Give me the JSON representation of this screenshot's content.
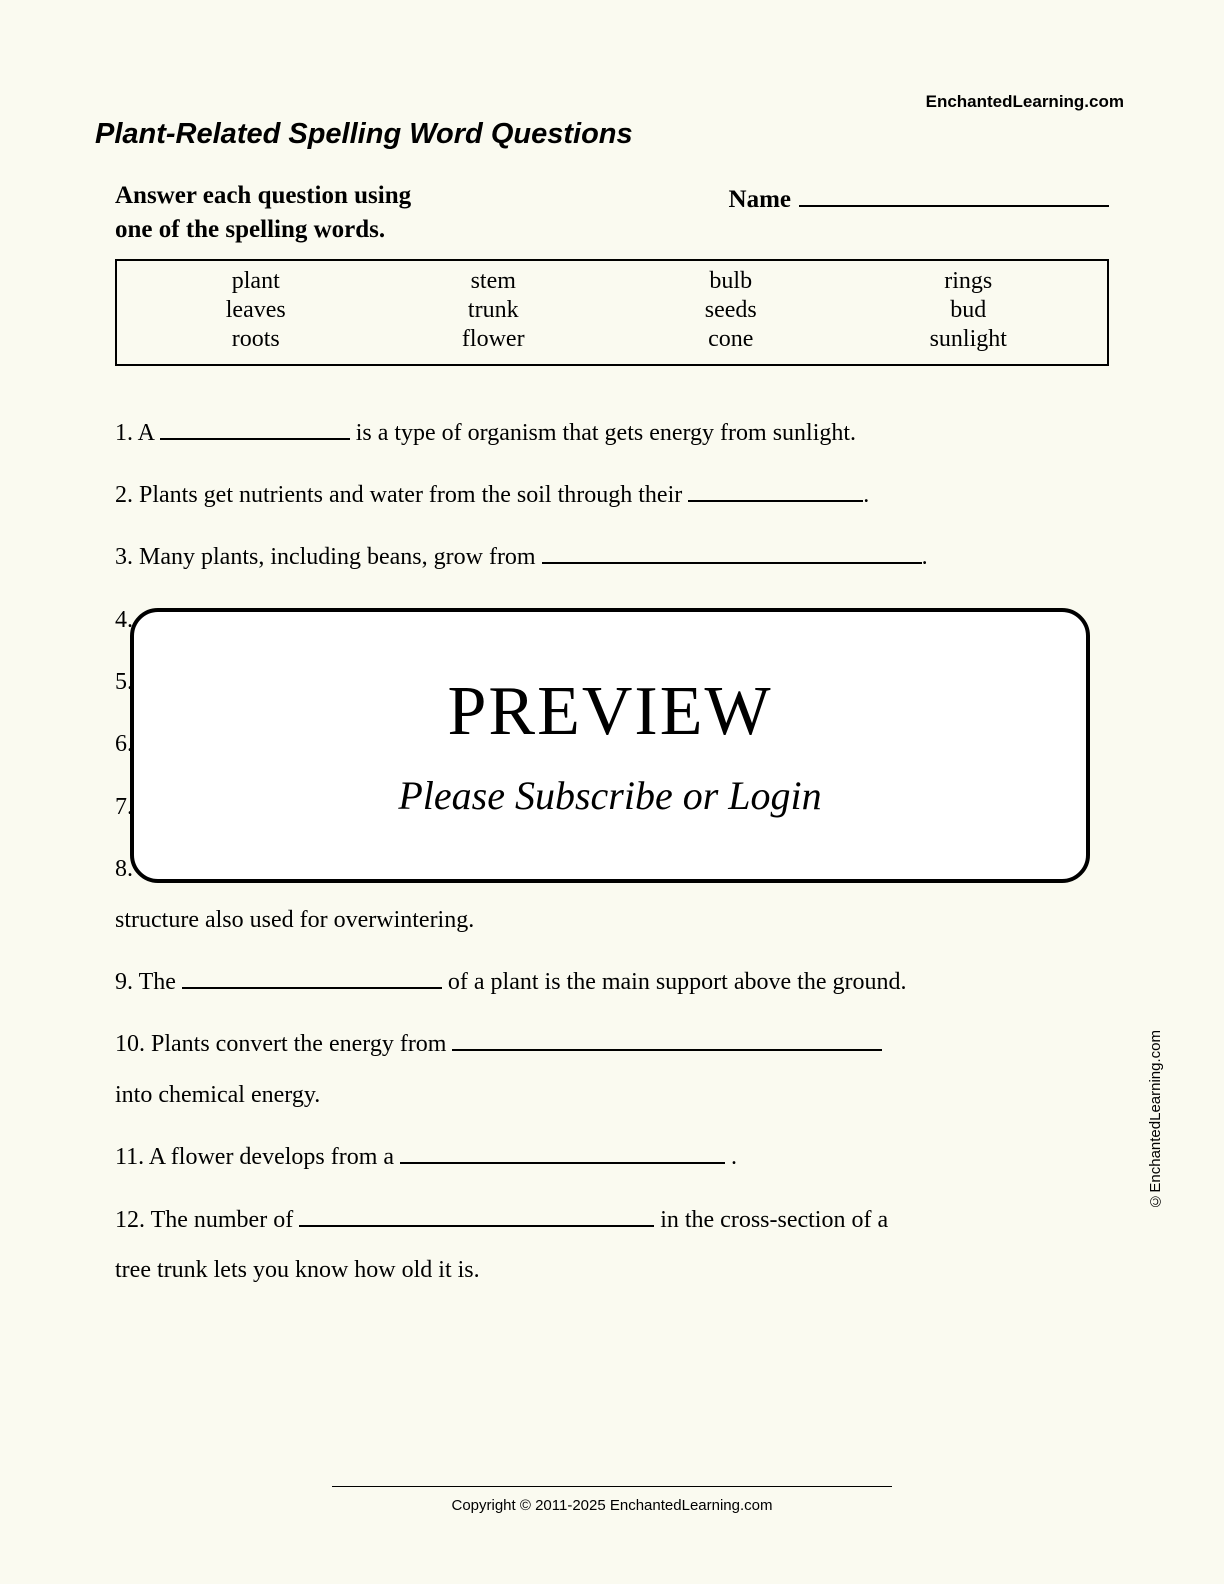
{
  "header": {
    "attribution": "EnchantedLearning.com",
    "title": "Plant-Related Spelling Word Questions",
    "instructions_line1": "Answer each question using",
    "instructions_line2": "one of the spelling words.",
    "name_label": "Name"
  },
  "wordbox": {
    "col1": [
      "plant",
      "leaves",
      "roots"
    ],
    "col2": [
      "stem",
      "trunk",
      "flower"
    ],
    "col3": [
      "bulb",
      "seeds",
      "cone"
    ],
    "col4": [
      "rings",
      "bud",
      "sunlight"
    ]
  },
  "questions": {
    "q1a": "1.  A ",
    "q1b": " is a type of organism that gets energy from sunlight.",
    "q2a": "2.  Plants get nutrients and water from the soil through their ",
    "q2b": ".",
    "q3a": "3.  Many plants, including beans, grow from ",
    "q3b": ".",
    "q4": "4.",
    "q5": "5.",
    "q6": "6.",
    "q7": "7.",
    "q8": "8.",
    "q8cont": "structure also used for overwintering.",
    "q9a": "9. The ",
    "q9b": " of a plant is the main support above the ground.",
    "q10a": "10.  Plants convert the energy from ",
    "q10cont": "into chemical energy.",
    "q11a": "11.  A flower develops from a ",
    "q11b": " .",
    "q12a": "12. The number of ",
    "q12b": " in the cross-section of a",
    "q12cont": "tree trunk lets you know how old it is."
  },
  "preview": {
    "title": "PREVIEW",
    "subtitle": "Please Subscribe or Login"
  },
  "side_copyright": "©EnchantedLearning.com",
  "footer": "Copyright © 2011-2025 EnchantedLearning.com"
}
